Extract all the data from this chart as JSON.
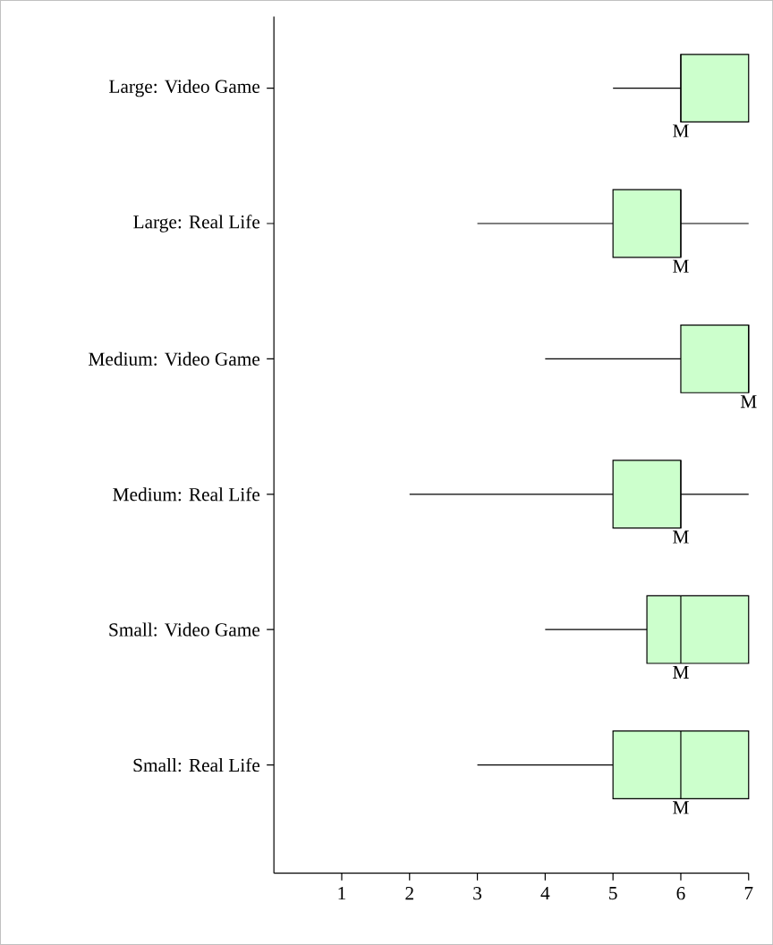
{
  "chart_data": {
    "type": "box",
    "orientation": "horizontal",
    "categories": [
      "Large: Video Game",
      "Large: Real Life",
      "Medium: Video Game",
      "Medium: Real Life",
      "Small: Video Game",
      "Small: Real Life"
    ],
    "boxes": [
      {
        "low": 5,
        "q1": 6,
        "median": 6,
        "q3": 7,
        "high": 7
      },
      {
        "low": 3,
        "q1": 5,
        "median": 6,
        "q3": 6,
        "high": 7
      },
      {
        "low": 4,
        "q1": 6,
        "median": 7,
        "q3": 7,
        "high": 7
      },
      {
        "low": 2,
        "q1": 5,
        "median": 6,
        "q3": 6,
        "high": 7
      },
      {
        "low": 4,
        "q1": 5.5,
        "median": 6,
        "q3": 7,
        "high": 7
      },
      {
        "low": 3,
        "q1": 5,
        "median": 6,
        "q3": 7,
        "high": 7
      }
    ],
    "color": "#ccffcc",
    "xlim": [
      0,
      7
    ],
    "xticks": [
      1,
      2,
      3,
      4,
      5,
      6,
      7
    ],
    "annotations": [
      "M",
      "M",
      "M",
      "M",
      "M",
      "M"
    ]
  }
}
